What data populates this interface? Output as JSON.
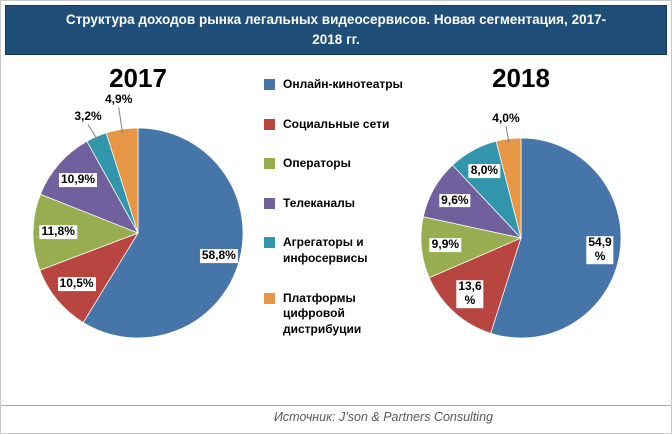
{
  "header": {
    "title": "Структура доходов рынка легальных видеосервисов. Новая сегментация, 2017-\n2018 гг."
  },
  "footer": {
    "source": "Источник: J’son & Partners Consulting"
  },
  "colors": {
    "title_bar_background": "#1F4E79",
    "title_text": "#FFFFFF",
    "online_cinemas": "#4575A9",
    "social_networks": "#B94540",
    "operators": "#97AD4F",
    "tv_channels": "#70609E",
    "aggregators": "#3196AB",
    "digital_platforms": "#E79646"
  },
  "legend": {
    "items": [
      {
        "label": "Онлайн-кинотеатры",
        "color": "#4575A9"
      },
      {
        "label": "Социальные сети",
        "color": "#B94540"
      },
      {
        "label": "Операторы",
        "color": "#97AD4F"
      },
      {
        "label": "Телеканалы",
        "color": "#70609E"
      },
      {
        "label": "Агрегаторы и инфосервисы",
        "color": "#3196AB"
      },
      {
        "label": "Платформы цифровой дистрибуции",
        "color": "#E79646"
      }
    ]
  },
  "chart_data": [
    {
      "type": "pie",
      "title": "2017",
      "categories": [
        "Онлайн-кинотеатры",
        "Социальные сети",
        "Операторы",
        "Телеканалы",
        "Агрегаторы и инфосервисы",
        "Платформы цифровой дистрибуции"
      ],
      "values": [
        58.8,
        10.5,
        11.8,
        10.9,
        3.2,
        4.9
      ],
      "value_labels": [
        "58,8%",
        "10,5%",
        "11,8%",
        "10,9%",
        "3,2%",
        "4,9%"
      ],
      "colors": [
        "#4575A9",
        "#B94540",
        "#97AD4F",
        "#70609E",
        "#3196AB",
        "#E79646"
      ],
      "legend_position": "center-between-pies",
      "start_angle_deg": 0,
      "direction": "clockwise"
    },
    {
      "type": "pie",
      "title": "2018",
      "categories": [
        "Онлайн-кинотеатры",
        "Социальные сети",
        "Операторы",
        "Телеканалы",
        "Агрегаторы и инфосервисы",
        "Платформы цифровой дистрибуции"
      ],
      "values": [
        54.9,
        13.6,
        9.9,
        9.6,
        8.0,
        4.0
      ],
      "value_labels": [
        "54,9\n%",
        "13,6\n%",
        "9,9%",
        "9,6%",
        "8,0%",
        "4,0%"
      ],
      "colors": [
        "#4575A9",
        "#B94540",
        "#97AD4F",
        "#70609E",
        "#3196AB",
        "#E79646"
      ],
      "legend_position": "center-between-pies",
      "start_angle_deg": 0,
      "direction": "clockwise"
    }
  ]
}
